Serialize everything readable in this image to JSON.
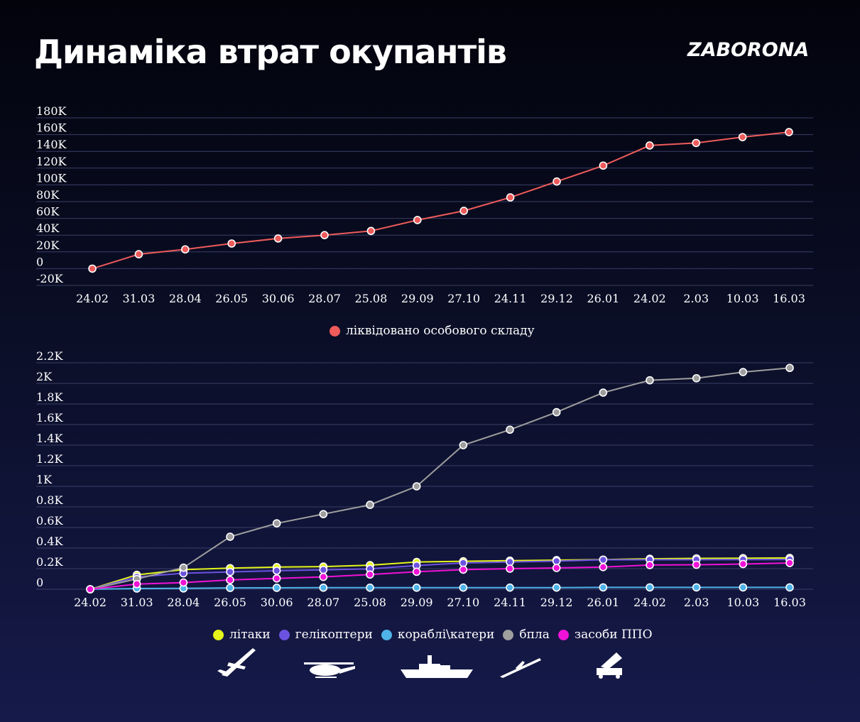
{
  "header": {
    "title": "Динаміка втрат окупантів",
    "brand": "ZABORONA"
  },
  "colors": {
    "personnel": "#ee5b5b",
    "aircraft": "#e5f51a",
    "helicopters": "#6c52e0",
    "ships": "#4fb3e8",
    "drones": "#9e9e9e",
    "air_defense": "#f012d6"
  },
  "icons": [
    "soldier-icon",
    "airplane-icon",
    "helicopter-icon",
    "warship-icon",
    "drone-icon",
    "air-defense-launcher-icon"
  ],
  "chart_data": [
    {
      "type": "line",
      "categories": [
        "24.02",
        "31.03",
        "28.04",
        "26.05",
        "30.06",
        "28.07",
        "25.08",
        "29.09",
        "27.10",
        "24.11",
        "29.12",
        "26.01",
        "24.02",
        "2.03",
        "10.03",
        "16.03"
      ],
      "y_ticks": [
        "180K",
        "160K",
        "140K",
        "120K",
        "100K",
        "80K",
        "60K",
        "40K",
        "20K",
        "0",
        "-20K"
      ],
      "ylim": [
        -20000,
        180000
      ],
      "grid": true,
      "legend": "bottom",
      "series": [
        {
          "name": "ліквідовано особового складу",
          "color": "#ee5b5b",
          "values": [
            0,
            17200,
            23000,
            30000,
            36000,
            40000,
            45000,
            58000,
            69000,
            85000,
            104000,
            123000,
            147000,
            150000,
            157000,
            163000
          ]
        }
      ]
    },
    {
      "type": "line",
      "categories": [
        "24.02",
        "31.03",
        "28.04",
        "26.05",
        "30.06",
        "28.07",
        "25.08",
        "29.09",
        "27.10",
        "24.11",
        "29.12",
        "26.01",
        "24.02",
        "2.03",
        "10.03",
        "16.03"
      ],
      "y_ticks": [
        "2.2K",
        "2K",
        "1.8K",
        "1.6K",
        "1.4K",
        "1.2K",
        "1K",
        "0.8K",
        "0.6K",
        "0.4K",
        "0.2K",
        "0"
      ],
      "ylim": [
        0,
        2200
      ],
      "grid": true,
      "legend": "bottom",
      "series": [
        {
          "name": "літаки",
          "color": "#e5f51a",
          "values": [
            0,
            140,
            190,
            205,
            215,
            220,
            234,
            265,
            272,
            278,
            283,
            288,
            296,
            300,
            302,
            304
          ]
        },
        {
          "name": "гелікоптери",
          "color": "#6c52e0",
          "values": [
            0,
            120,
            155,
            168,
            180,
            188,
            198,
            230,
            255,
            265,
            273,
            286,
            287,
            287,
            288,
            289
          ]
        },
        {
          "name": "кораблі\\катери",
          "color": "#4fb3e8",
          "values": [
            0,
            7,
            8,
            13,
            14,
            15,
            15,
            15,
            16,
            16,
            16,
            18,
            18,
            18,
            18,
            18
          ]
        },
        {
          "name": "бпла",
          "color": "#9e9e9e",
          "values": [
            0,
            100,
            210,
            510,
            640,
            730,
            820,
            1000,
            1400,
            1550,
            1720,
            1910,
            2030,
            2050,
            2110,
            2150
          ]
        },
        {
          "name": "засоби ППО",
          "color": "#f012d6",
          "values": [
            0,
            50,
            65,
            90,
            105,
            120,
            143,
            170,
            190,
            200,
            207,
            215,
            235,
            238,
            245,
            255
          ]
        }
      ]
    }
  ]
}
